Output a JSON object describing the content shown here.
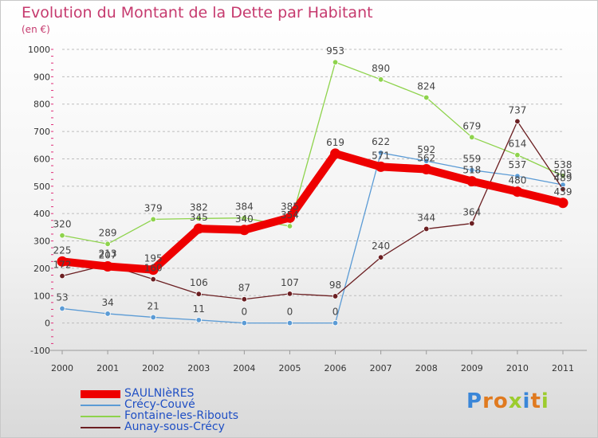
{
  "header": {
    "title": "Evolution du Montant de la Dette par Habitant",
    "subtitle": "(en €)"
  },
  "logo": {
    "letters": [
      "P",
      "r",
      "o",
      "x",
      "i",
      "t",
      "i"
    ],
    "colors": [
      "#3a86d8",
      "#e07a1f",
      "#e07a1f",
      "#9ccc2e",
      "#3a86d8",
      "#e07a1f",
      "#9ccc2e"
    ]
  },
  "chart_data": {
    "type": "line",
    "title": "Evolution du Montant de la Dette par Habitant",
    "subtitle": "(en €)",
    "categories": [
      "2000",
      "2001",
      "2002",
      "2003",
      "2004",
      "2005",
      "2006",
      "2007",
      "2008",
      "2009",
      "2010",
      "2011"
    ],
    "ylim": [
      -100,
      1000
    ],
    "yticks": [
      -100,
      0,
      100,
      200,
      300,
      400,
      500,
      600,
      700,
      800,
      900,
      1000
    ],
    "grid": "horizontal-dashed",
    "legend_position": "bottom-left",
    "series": [
      {
        "name": "Crécy-Couvé",
        "color": "#5b9bd5",
        "values": [
          53,
          34,
          21,
          11,
          0,
          0,
          0,
          622,
          592,
          559,
          537,
          505
        ]
      },
      {
        "name": "Fontaine-les-Ribouts",
        "color": "#8ed34c",
        "values": [
          320,
          289,
          379,
          382,
          384,
          354,
          953,
          890,
          824,
          679,
          614,
          538
        ]
      },
      {
        "name": "Aunay-sous-Crécy",
        "color": "#6b1f22",
        "values": [
          172,
          213,
          160,
          106,
          87,
          107,
          98,
          240,
          344,
          364,
          737,
          489
        ]
      },
      {
        "name": "SAULNIèRES",
        "color": "#ee0000",
        "values": [
          225,
          207,
          195,
          345,
          340,
          385,
          619,
          571,
          562,
          518,
          480,
          439
        ]
      }
    ],
    "data_labels": [
      [
        "53",
        "34",
        "21",
        "11",
        "0",
        "0",
        "0",
        "622",
        "592",
        "559",
        "537",
        "505"
      ],
      [
        "320",
        "289",
        "379",
        "382",
        "384",
        "354",
        "953",
        "890",
        "824",
        "679",
        "614",
        "538"
      ],
      [
        "172",
        "213",
        "160",
        "106",
        "87",
        "107",
        "98",
        "240",
        "344",
        "364",
        "737",
        "489"
      ],
      [
        "225",
        "207",
        "195",
        "345",
        "340",
        "385",
        "619",
        "571",
        "562",
        "518",
        "480",
        "439"
      ]
    ]
  }
}
